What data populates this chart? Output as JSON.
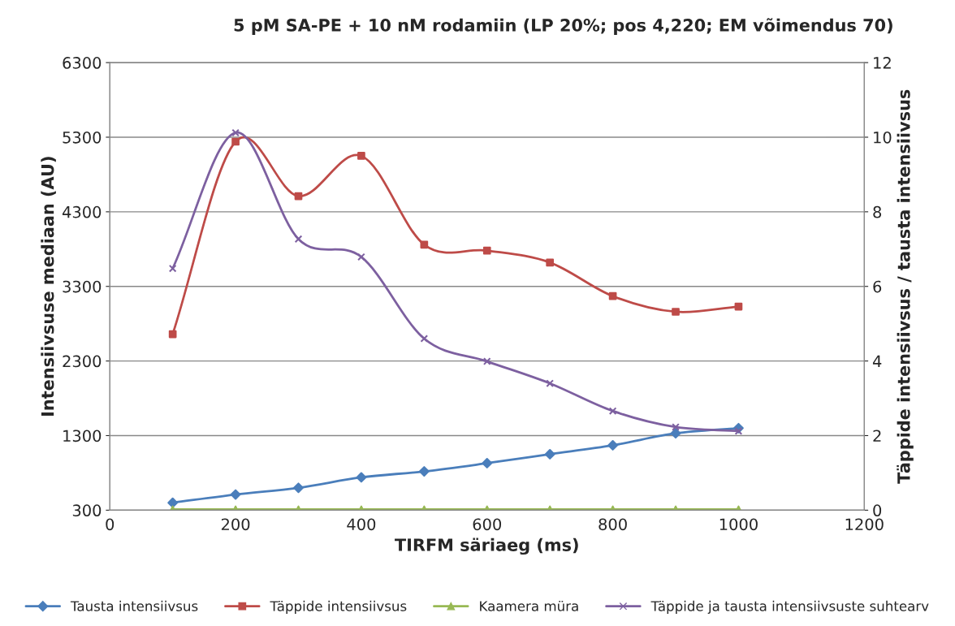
{
  "chart_data": {
    "type": "line",
    "title": "5 pM SA-PE + 10 nM rodamiin (LP 20%; pos 4,220; EM võimendus 70)",
    "xlabel": "TIRFM säriaeg (ms)",
    "ylabel": "Intensiivsuse mediaan (AU)",
    "y2label": "Täppide intensiivsus / tausta intensiivsus",
    "x": [
      100,
      200,
      300,
      400,
      500,
      600,
      700,
      800,
      900,
      1000
    ],
    "xlim": [
      0,
      1200
    ],
    "xticks": [
      0,
      200,
      400,
      600,
      800,
      1000,
      1200
    ],
    "ylim": [
      300,
      6300
    ],
    "yticks": [
      300,
      1300,
      2300,
      3300,
      4300,
      5300,
      6300
    ],
    "y2lim": [
      0,
      12
    ],
    "y2ticks": [
      0,
      2,
      4,
      6,
      8,
      10,
      12
    ],
    "grid": "y",
    "legend": "bottom",
    "series": [
      {
        "name": "Tausta intensiivsus",
        "color": "#4a7ebb",
        "marker": "diamond",
        "values": [
          400,
          510,
          600,
          740,
          820,
          930,
          1050,
          1170,
          1330,
          1400
        ]
      },
      {
        "name": "Täppide intensiivsus",
        "color": "#be4b48",
        "marker": "square",
        "values": [
          2660,
          5240,
          4510,
          5050,
          3860,
          3780,
          3620,
          3170,
          2960,
          3030
        ]
      },
      {
        "name": "Kaamera müra",
        "color": "#98b954",
        "marker": "triangle",
        "values": [
          310,
          310,
          310,
          310,
          310,
          310,
          310,
          310,
          310,
          310
        ]
      },
      {
        "name": "Täppide ja tausta intensiivsuste suhtearv",
        "color": "#7d60a0",
        "marker": "cross",
        "axis": "y2",
        "values": [
          6.48,
          10.12,
          7.27,
          6.79,
          4.6,
          3.99,
          3.4,
          2.66,
          2.23,
          2.12
        ]
      }
    ]
  }
}
